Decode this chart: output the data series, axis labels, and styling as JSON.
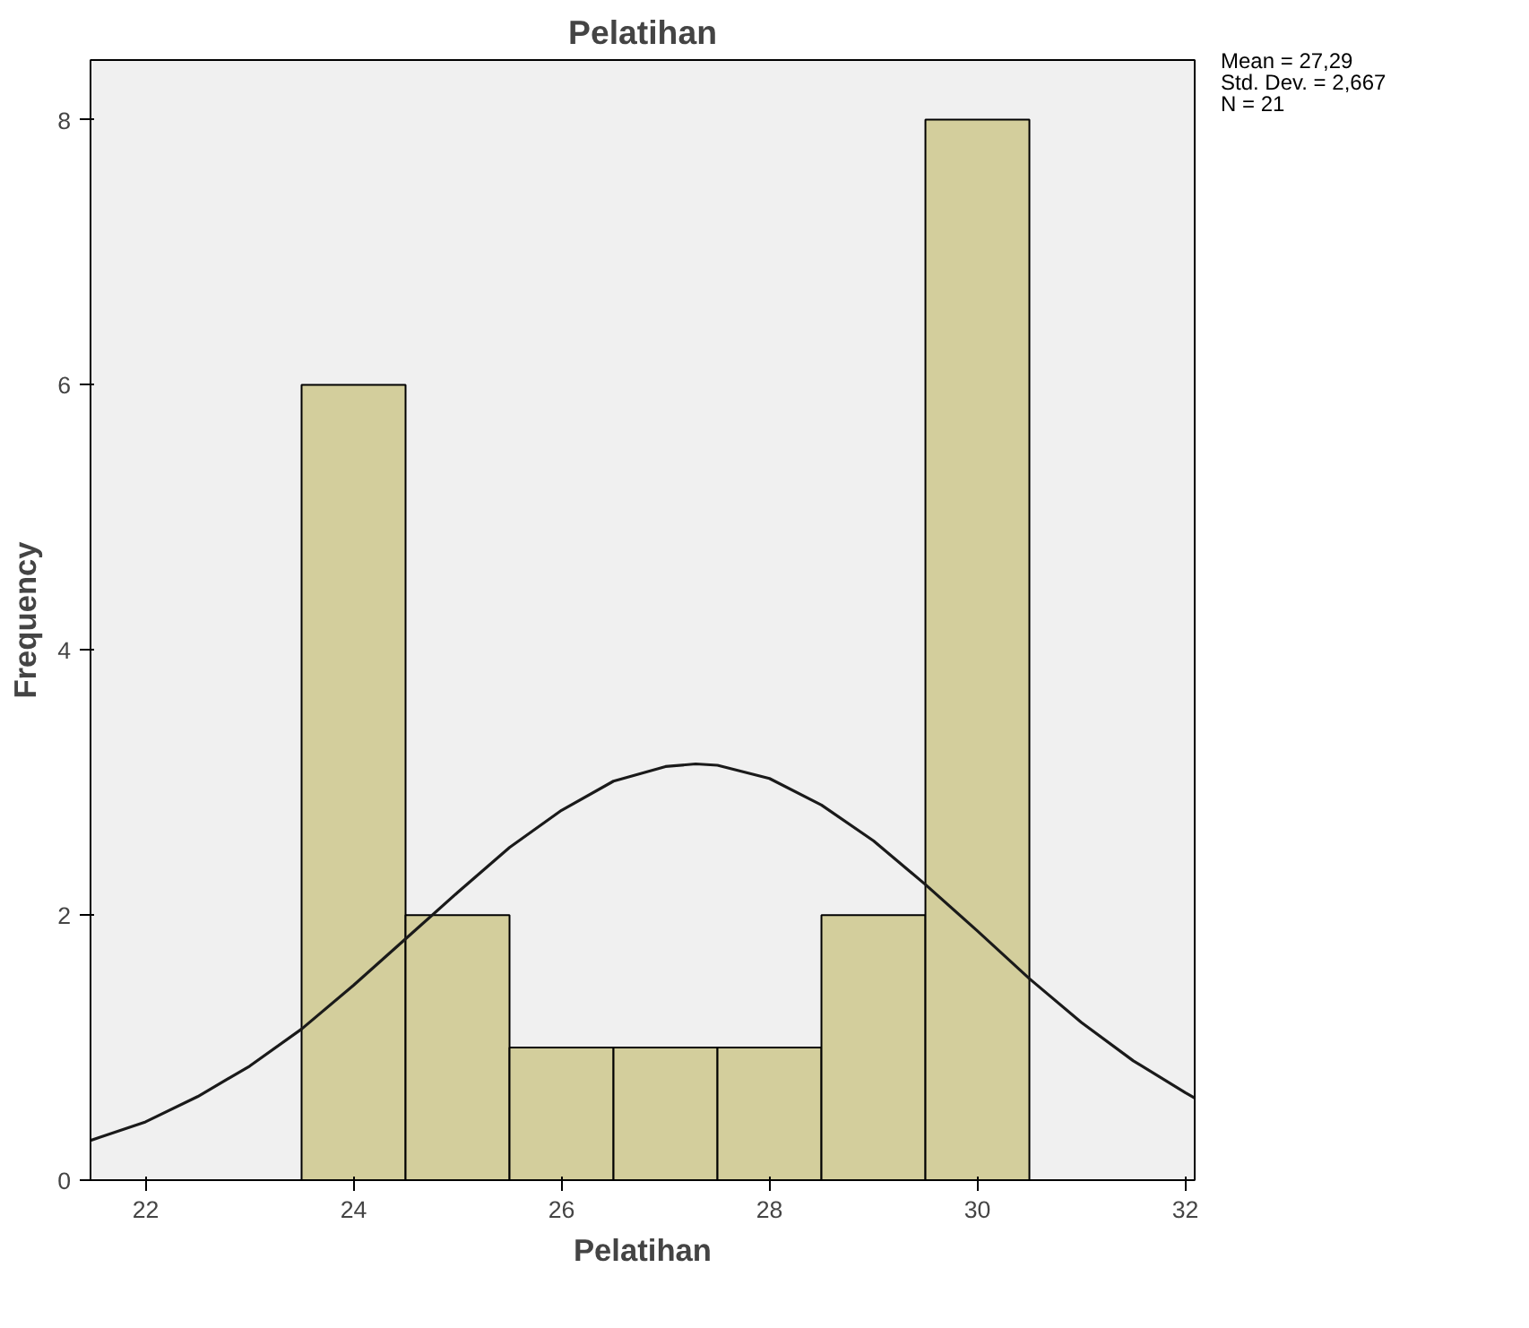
{
  "chart_data": {
    "type": "histogram",
    "title": "Pelatihan",
    "xlabel": "Pelatihan",
    "ylabel": "Frequency",
    "bins": [
      23.5,
      24.5,
      25.5,
      26.5,
      27.5,
      28.5,
      29.5,
      30.5
    ],
    "values": [
      6,
      2,
      1,
      1,
      1,
      2,
      8
    ],
    "color": "#d3ce9c",
    "series": [
      {
        "type": "line",
        "color": "#1a1a1a",
        "x": [
          21.47,
          22,
          22.5,
          23,
          23.5,
          24,
          24.5,
          25,
          25.5,
          26,
          26.5,
          27,
          27.29,
          27.5,
          28,
          28.5,
          29,
          29.5,
          30,
          30.5,
          31,
          31.5,
          32,
          32.09
        ],
        "values": [
          0.3,
          0.44,
          0.63,
          0.86,
          1.14,
          1.47,
          1.82,
          2.17,
          2.51,
          2.79,
          3.01,
          3.12,
          3.14,
          3.13,
          3.03,
          2.83,
          2.56,
          2.23,
          1.88,
          1.52,
          1.19,
          0.9,
          0.66,
          0.62
        ]
      }
    ],
    "xlim": [
      21.47,
      32.09
    ],
    "ylim": [
      0,
      8.45
    ],
    "xticks": [
      22,
      24,
      26,
      28,
      30,
      32
    ],
    "yticks": [
      0,
      2,
      4,
      6,
      8
    ],
    "grid": false,
    "annotations": [
      "Mean = 27,29",
      "Std. Dev. = 2,667",
      "N = 21"
    ]
  }
}
